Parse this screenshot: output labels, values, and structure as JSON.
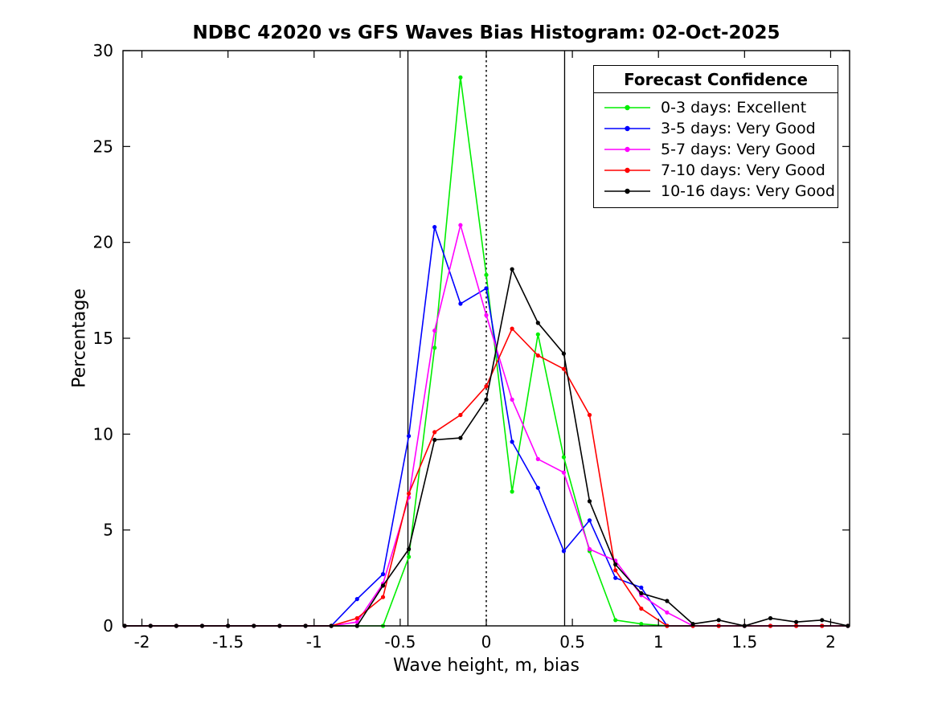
{
  "chart_data": {
    "type": "line",
    "title": "NDBC 42020 vs GFS Waves Bias Histogram: 02-Oct-2025",
    "xlabel": "Wave height, m, bias",
    "ylabel": "Percentage",
    "xlim": [
      -2.11,
      2.11
    ],
    "ylim": [
      0,
      30
    ],
    "grid": false,
    "xticks": {
      "values": [
        -2,
        -1.5,
        -1,
        -0.5,
        0,
        0.5,
        1,
        1.5,
        2
      ],
      "labels": [
        "-2",
        "-1.5",
        "-1",
        "-0.5",
        "0",
        "0.5",
        "1",
        "1.5",
        "2"
      ]
    },
    "yticks": {
      "values": [
        0,
        5,
        10,
        15,
        20,
        25,
        30
      ],
      "labels": [
        "0",
        "5",
        "10",
        "15",
        "20",
        "25",
        "30"
      ]
    },
    "x": [
      -2.1,
      -1.95,
      -1.8,
      -1.65,
      -1.5,
      -1.35,
      -1.2,
      -1.05,
      -0.9,
      -0.75,
      -0.6,
      -0.45,
      -0.3,
      -0.15,
      0,
      0.15,
      0.3,
      0.45,
      0.6,
      0.75,
      0.9,
      1.05,
      1.2,
      1.35,
      1.5,
      1.65,
      1.8,
      1.95,
      2.1
    ],
    "series": [
      {
        "name": "0-3 days: Excellent",
        "color": "#00ee00",
        "values": [
          0,
          0,
          0,
          0,
          0,
          0,
          0,
          0,
          0,
          0,
          0,
          3.6,
          14.5,
          28.6,
          18.3,
          7.0,
          15.2,
          8.8,
          3.9,
          0.3,
          0.1,
          0,
          0,
          0,
          0,
          0,
          0,
          0,
          0
        ]
      },
      {
        "name": "3-5 days: Very Good",
        "color": "#0000ff",
        "values": [
          0,
          0,
          0,
          0,
          0,
          0,
          0,
          0,
          0,
          1.4,
          2.7,
          9.9,
          20.8,
          16.8,
          17.6,
          9.6,
          7.2,
          3.9,
          5.5,
          2.5,
          2.0,
          0,
          0,
          0,
          0,
          0,
          0,
          0,
          0
        ]
      },
      {
        "name": "5-7 days: Very Good",
        "color": "#ff00ff",
        "values": [
          0,
          0,
          0,
          0,
          0,
          0,
          0,
          0,
          0,
          0.2,
          2.2,
          6.7,
          15.4,
          20.9,
          16.2,
          11.8,
          8.7,
          8.0,
          4.0,
          3.4,
          1.6,
          0.7,
          0,
          0,
          0,
          0,
          0,
          0,
          0
        ]
      },
      {
        "name": "7-10 days: Very Good",
        "color": "#ff0000",
        "values": [
          0,
          0,
          0,
          0,
          0,
          0,
          0,
          0,
          0,
          0.4,
          1.5,
          6.9,
          10.1,
          11.0,
          12.5,
          15.5,
          14.1,
          13.4,
          11.0,
          2.9,
          0.9,
          0,
          0,
          0,
          0,
          0,
          0,
          0,
          0
        ]
      },
      {
        "name": "10-16 days: Very Good",
        "color": "#000000",
        "values": [
          0,
          0,
          0,
          0,
          0,
          0,
          0,
          0,
          0,
          0,
          2.1,
          4.0,
          9.7,
          9.8,
          11.8,
          18.6,
          15.8,
          14.2,
          6.5,
          3.2,
          1.7,
          1.3,
          0.1,
          0.3,
          0,
          0.4,
          0.2,
          0.3,
          0
        ]
      }
    ],
    "ref_lines": [
      {
        "axis": "x",
        "value": -0.455,
        "style": "solid",
        "color": "#000000"
      },
      {
        "axis": "x",
        "value": 0,
        "style": "dotted",
        "color": "#000000"
      },
      {
        "axis": "x",
        "value": 0.455,
        "style": "solid",
        "color": "#000000"
      }
    ],
    "legend": {
      "title": "Forecast Confidence",
      "position": "top-right"
    }
  }
}
